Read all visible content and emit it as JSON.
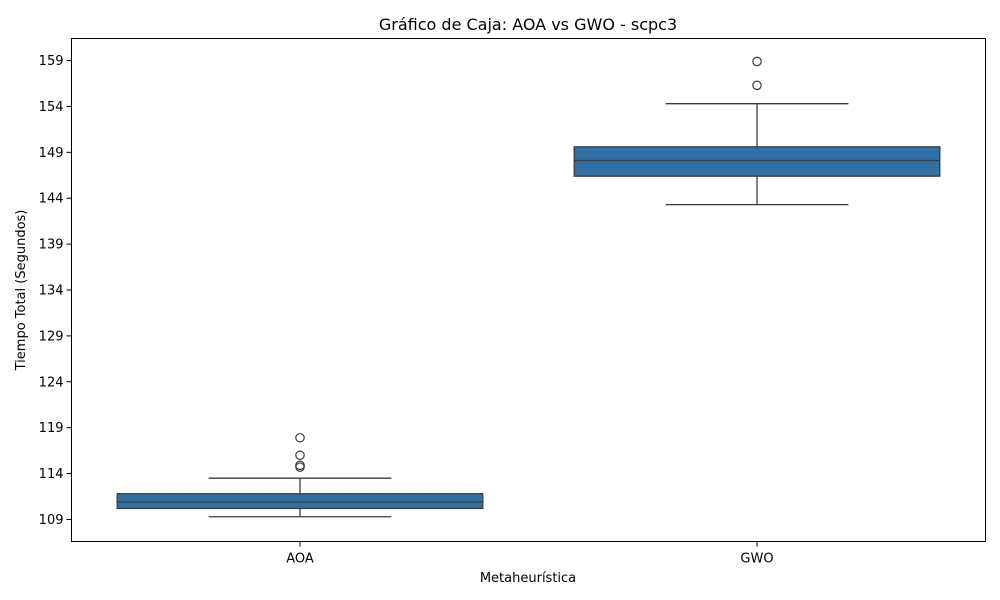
{
  "chart_data": {
    "type": "box",
    "title": "Gráfico de Caja: AOA vs GWO - scpc3",
    "xlabel": "Metaheurística",
    "ylabel": "Tiempo Total (Segundos)",
    "categories": [
      "AOA",
      "GWO"
    ],
    "ylim": [
      106.6,
      161.4
    ],
    "yticks": [
      109,
      114,
      119,
      124,
      129,
      134,
      139,
      144,
      149,
      154,
      159
    ],
    "grid": false,
    "box_color": "#2f70a6",
    "line_color": "#3c3c3c",
    "boxes": [
      {
        "category": "AOA",
        "whisker_low": 109.3,
        "q1": 110.2,
        "median": 110.9,
        "q3": 111.8,
        "whisker_high": 113.5,
        "outliers": [
          114.7,
          114.9,
          116.0,
          117.9
        ]
      },
      {
        "category": "GWO",
        "whisker_low": 143.3,
        "q1": 146.4,
        "median": 148.1,
        "q3": 149.6,
        "whisker_high": 154.3,
        "outliers": [
          156.3,
          158.9
        ]
      }
    ]
  }
}
